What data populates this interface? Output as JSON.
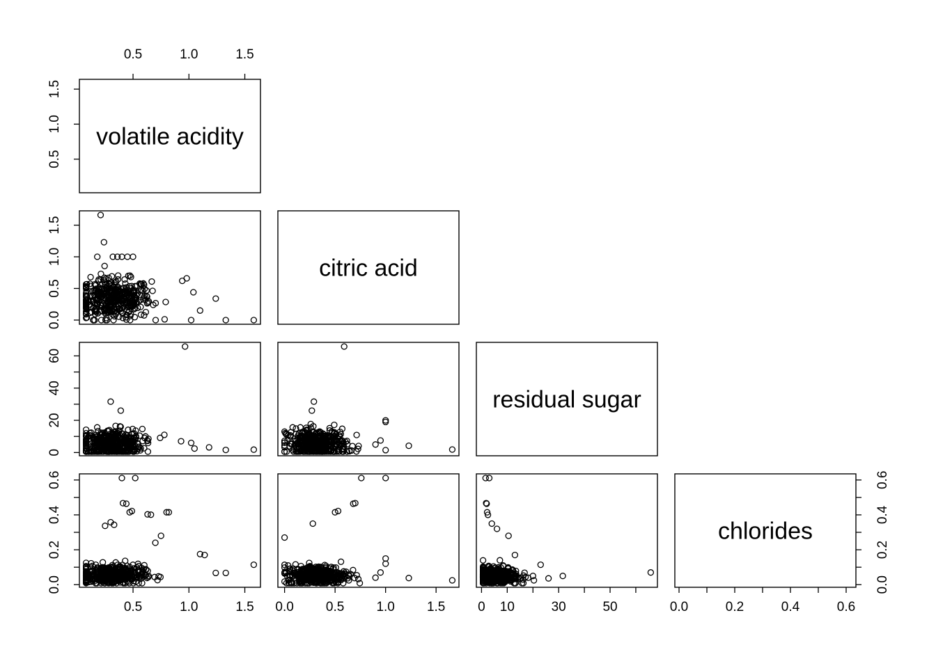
{
  "chart_data": {
    "type": "scatter",
    "matrix_layout": "lower-triangle pairs plot",
    "variables": [
      "volatile acidity",
      "citric acid",
      "residual sugar",
      "chlorides"
    ],
    "ranges": {
      "volatile acidity": [
        0.08,
        1.58
      ],
      "citric acid": [
        0.0,
        1.66
      ],
      "residual sugar": [
        0.6,
        65.8
      ],
      "chlorides": [
        0.009,
        0.611
      ]
    },
    "ticks": {
      "volatile acidity": [
        "0.5",
        "1.0",
        "1.5"
      ],
      "citric acid": [
        "0.0",
        "0.5",
        "1.0",
        "1.5"
      ],
      "residual sugar": [
        "0",
        "20",
        "40",
        "60"
      ],
      "residual sugar_x": [
        "0",
        "10",
        "30",
        "50"
      ],
      "chlorides": [
        "0.0",
        "0.2",
        "0.4",
        "0.6"
      ],
      "chlorides_x": [
        "0.0",
        "0.2",
        "0.4",
        "0.6"
      ]
    },
    "ticks_numeric": {
      "volatile acidity": [
        0.5,
        1.0,
        1.5
      ],
      "citric acid": [
        0.0,
        0.5,
        1.0,
        1.5
      ],
      "residual sugar": [
        0,
        20,
        40,
        60
      ],
      "residual sugar_x": [
        0,
        10,
        30,
        50
      ],
      "residual sugar_minor": [
        0,
        10,
        20,
        30,
        40,
        50,
        60
      ],
      "chlorides": [
        0.0,
        0.2,
        0.4,
        0.6
      ],
      "chlorides_minor": [
        0.0,
        0.1,
        0.2,
        0.3,
        0.4,
        0.5,
        0.6
      ]
    },
    "panels": [
      {
        "row": 1,
        "col": 0,
        "x": "volatile acidity",
        "y": "citric acid",
        "notable_points": [
          [
            0.21,
            1.66
          ],
          [
            0.24,
            1.23
          ],
          [
            0.18,
            1.0
          ],
          [
            0.32,
            1.0
          ],
          [
            0.36,
            1.0
          ],
          [
            0.4,
            1.0
          ],
          [
            0.45,
            1.0
          ],
          [
            0.5,
            1.0
          ],
          [
            0.98,
            0.66
          ],
          [
            1.04,
            0.44
          ],
          [
            1.1,
            0.15
          ],
          [
            1.24,
            0.34
          ],
          [
            1.33,
            0.0
          ],
          [
            1.58,
            0.0
          ],
          [
            1.02,
            0.0
          ],
          [
            0.94,
            0.62
          ]
        ],
        "cluster": {
          "x_center": 0.32,
          "y_center": 0.33,
          "x_spread": 0.17,
          "y_spread": 0.16
        }
      },
      {
        "row": 2,
        "col": 0,
        "x": "volatile acidity",
        "y": "residual sugar",
        "notable_points": [
          [
            0.965,
            65.8
          ],
          [
            0.3,
            31.6
          ],
          [
            0.39,
            26.05
          ],
          [
            1.05,
            2.5
          ],
          [
            1.33,
            1.6
          ],
          [
            1.58,
            1.8
          ],
          [
            0.93,
            7.0
          ],
          [
            1.02,
            6.0
          ],
          [
            1.18,
            3.2
          ],
          [
            0.78,
            11.0
          ]
        ],
        "cluster": {
          "x_center": 0.3,
          "y_center": 5.5,
          "x_spread": 0.14,
          "y_spread": 4.5
        }
      },
      {
        "row": 2,
        "col": 1,
        "x": "citric acid",
        "y": "residual sugar",
        "notable_points": [
          [
            0.59,
            65.8
          ],
          [
            0.29,
            31.6
          ],
          [
            0.27,
            26.05
          ],
          [
            1.0,
            20.0
          ],
          [
            1.0,
            19.0
          ],
          [
            1.23,
            4.2
          ],
          [
            1.66,
            1.9
          ],
          [
            0.95,
            7.5
          ],
          [
            0.9,
            5.0
          ],
          [
            1.0,
            1.5
          ],
          [
            0.0,
            13.0
          ]
        ],
        "cluster": {
          "x_center": 0.32,
          "y_center": 5.5,
          "x_spread": 0.15,
          "y_spread": 4.5
        }
      },
      {
        "row": 3,
        "col": 0,
        "x": "volatile acidity",
        "y": "chlorides",
        "notable_points": [
          [
            0.4,
            0.611
          ],
          [
            0.52,
            0.611
          ],
          [
            0.41,
            0.467
          ],
          [
            0.44,
            0.464
          ],
          [
            0.47,
            0.415
          ],
          [
            0.49,
            0.422
          ],
          [
            0.63,
            0.403
          ],
          [
            0.66,
            0.401
          ],
          [
            0.8,
            0.415
          ],
          [
            0.82,
            0.415
          ],
          [
            0.25,
            0.337
          ],
          [
            0.3,
            0.358
          ],
          [
            0.33,
            0.343
          ],
          [
            1.58,
            0.114
          ],
          [
            1.33,
            0.067
          ],
          [
            1.24,
            0.067
          ],
          [
            1.1,
            0.175
          ],
          [
            1.14,
            0.17
          ],
          [
            0.75,
            0.28
          ],
          [
            0.7,
            0.24
          ]
        ],
        "cluster": {
          "x_center": 0.3,
          "y_center": 0.055,
          "x_spread": 0.15,
          "y_spread": 0.028
        }
      },
      {
        "row": 3,
        "col": 1,
        "x": "citric acid",
        "y": "chlorides",
        "notable_points": [
          [
            0.76,
            0.611
          ],
          [
            1.0,
            0.611
          ],
          [
            0.53,
            0.422
          ],
          [
            0.5,
            0.415
          ],
          [
            0.68,
            0.464
          ],
          [
            0.7,
            0.467
          ],
          [
            0.0,
            0.27
          ],
          [
            0.28,
            0.35
          ],
          [
            1.0,
            0.15
          ],
          [
            1.0,
            0.12
          ],
          [
            1.23,
            0.038
          ],
          [
            1.66,
            0.025
          ],
          [
            0.95,
            0.07
          ],
          [
            0.9,
            0.04
          ]
        ],
        "cluster": {
          "x_center": 0.32,
          "y_center": 0.055,
          "x_spread": 0.15,
          "y_spread": 0.028
        }
      },
      {
        "row": 3,
        "col": 2,
        "x": "residual sugar",
        "y": "chlorides",
        "notable_points": [
          [
            1.6,
            0.611
          ],
          [
            3.0,
            0.611
          ],
          [
            1.8,
            0.467
          ],
          [
            2.0,
            0.464
          ],
          [
            2.2,
            0.415
          ],
          [
            2.5,
            0.4
          ],
          [
            4.0,
            0.35
          ],
          [
            6.0,
            0.32
          ],
          [
            10.5,
            0.28
          ],
          [
            13.0,
            0.17
          ],
          [
            23.0,
            0.114
          ],
          [
            31.6,
            0.05
          ],
          [
            65.8,
            0.07
          ],
          [
            26.05,
            0.036
          ],
          [
            20.0,
            0.05
          ]
        ],
        "cluster": {
          "x_center": 5.5,
          "y_center": 0.05,
          "x_spread": 4.5,
          "y_spread": 0.025
        }
      }
    ]
  }
}
